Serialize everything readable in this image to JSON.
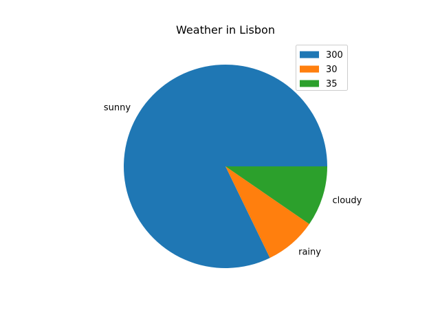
{
  "chart_data": {
    "type": "pie",
    "title": "Weather in Lisbon",
    "categories": [
      "sunny",
      "rainy",
      "cloudy"
    ],
    "values": [
      300,
      30,
      35
    ],
    "colors": [
      "#1f77b4",
      "#ff7f0e",
      "#2ca02c"
    ],
    "start_angle_deg": 0,
    "direction": "counterclockwise",
    "legend": {
      "placement": "top-right",
      "entries": [
        "300",
        "30",
        "35"
      ]
    }
  }
}
